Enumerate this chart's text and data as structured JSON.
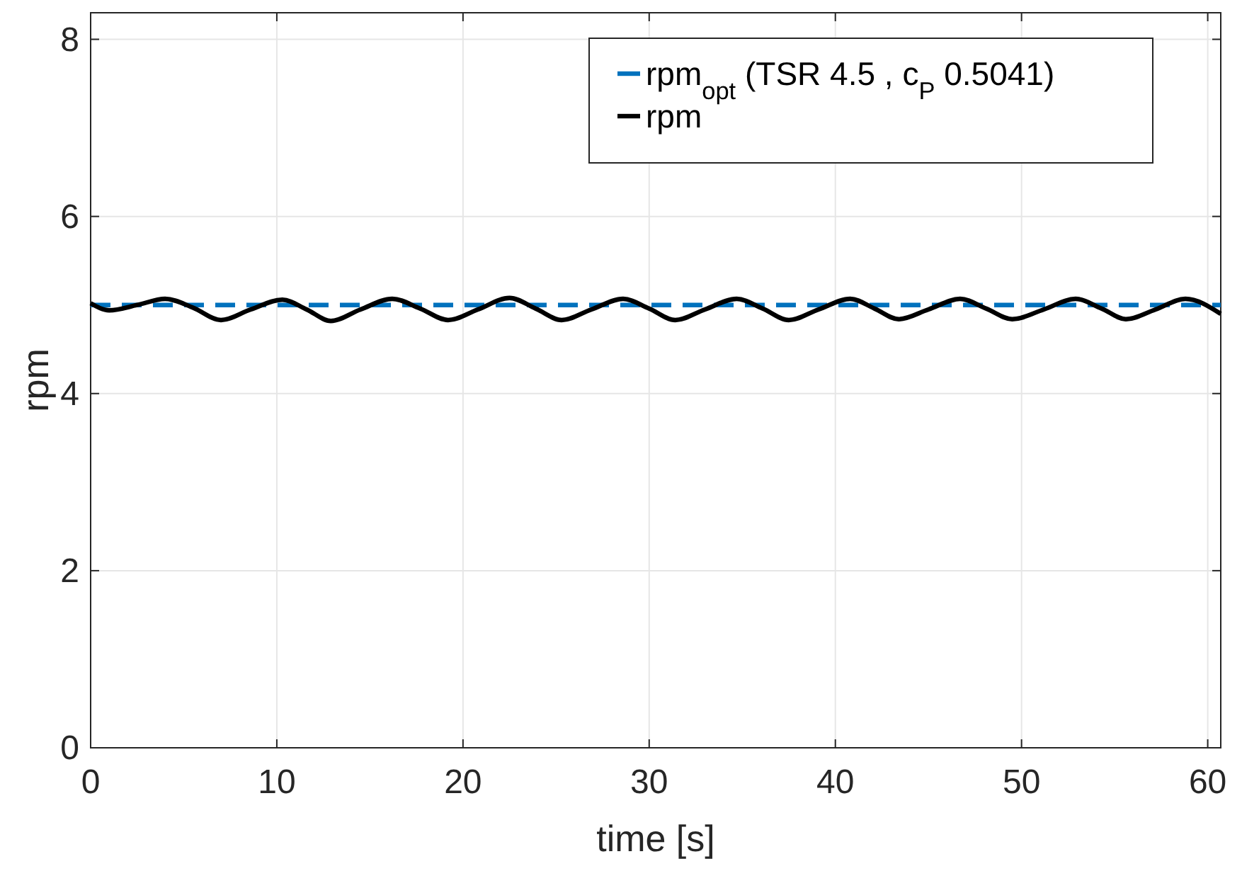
{
  "chart_data": {
    "type": "line",
    "xlabel": "time [s]",
    "ylabel": "rpm",
    "xlim": [
      0,
      60.7
    ],
    "ylim": [
      0,
      8.3
    ],
    "xticks": [
      0,
      10,
      20,
      30,
      40,
      50,
      60
    ],
    "yticks": [
      0,
      2,
      4,
      6,
      8
    ],
    "grid": true,
    "legend": "top right",
    "series": [
      {
        "name": "rpm$_{opt}$ (TSR 4.5 , c$_{P}$ 0.5041)",
        "color": "#0072bd",
        "line_style": "dashed",
        "x": [
          0,
          60.7
        ],
        "values": [
          5.0,
          5.0
        ]
      },
      {
        "name": "rpm",
        "color": "#000000",
        "line_style": "solid",
        "x": [
          0,
          1.0,
          2.5,
          4.0,
          5.5,
          7.0,
          8.6,
          10.3,
          11.6,
          12.9,
          14.5,
          16.2,
          17.7,
          19.2,
          20.8,
          22.5,
          23.9,
          25.3,
          26.9,
          28.6,
          30.0,
          31.4,
          33.0,
          34.7,
          36.1,
          37.5,
          39.1,
          40.8,
          42.1,
          43.4,
          45.0,
          46.7,
          48.1,
          49.5,
          51.2,
          52.9,
          54.3,
          55.6,
          57.2,
          58.8,
          60.7
        ],
        "values": [
          5.02,
          4.94,
          5.0,
          5.07,
          4.97,
          4.83,
          4.95,
          5.06,
          4.95,
          4.82,
          4.95,
          5.07,
          4.96,
          4.83,
          4.95,
          5.08,
          4.96,
          4.83,
          4.95,
          5.07,
          4.96,
          4.83,
          4.95,
          5.07,
          4.96,
          4.83,
          4.95,
          5.07,
          4.96,
          4.84,
          4.95,
          5.07,
          4.96,
          4.84,
          4.95,
          5.07,
          4.96,
          4.84,
          4.95,
          5.07,
          4.9
        ]
      }
    ]
  }
}
